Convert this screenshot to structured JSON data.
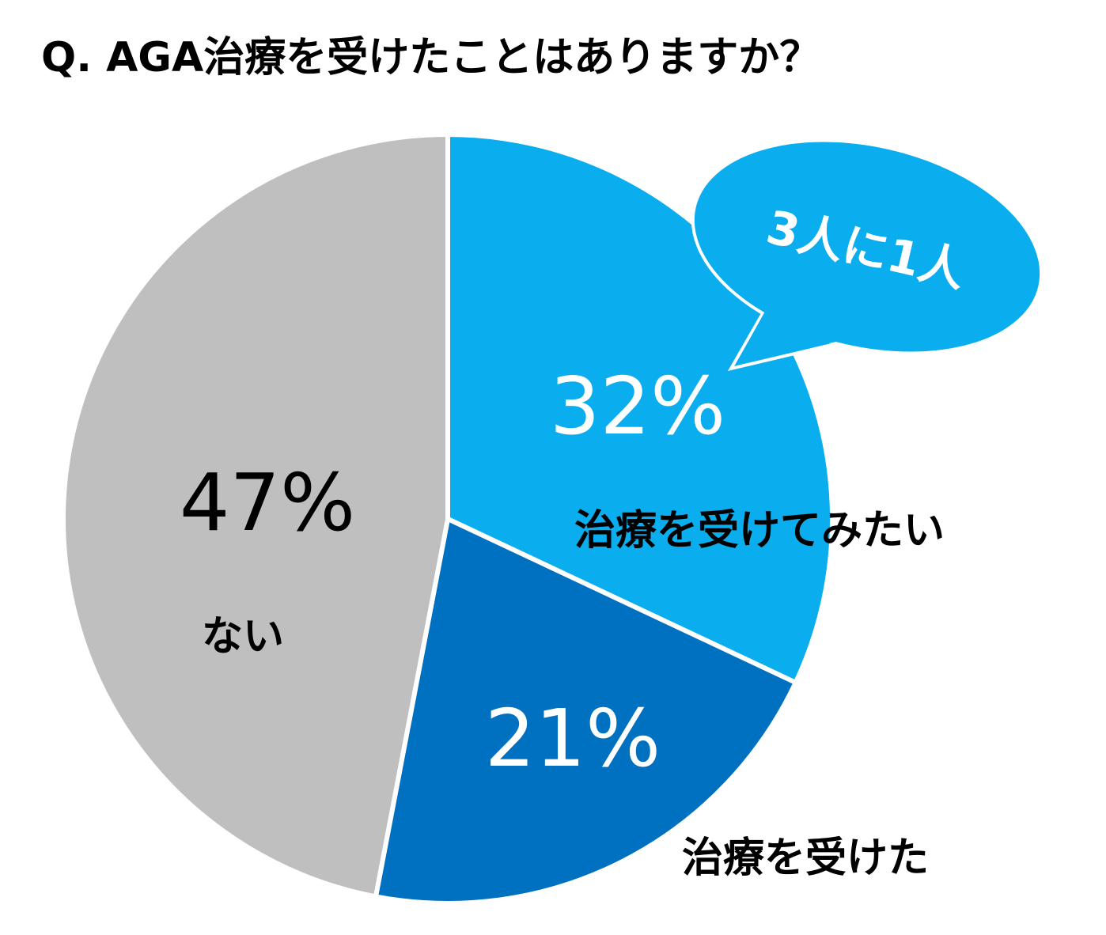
{
  "chart_data": {
    "type": "pie",
    "title": "Q. AGA治療を受けたことはありますか？",
    "slices": [
      {
        "label": "治療を受けてみたい",
        "value": 32,
        "value_label": "32%",
        "color": "#0AAEEF"
      },
      {
        "label": "治療を受けた",
        "value": 21,
        "value_label": "21%",
        "color": "#0070C0"
      },
      {
        "label": "ない",
        "value": 47,
        "value_label": "47%",
        "color": "#BFBFBF"
      }
    ],
    "start": "12 o'clock",
    "direction": "clockwise",
    "annotation": {
      "text": "3人に1人",
      "color": "#0AAEEF",
      "text_color": "#ffffff",
      "target": "治療を受けてみたい"
    },
    "legend": "none"
  }
}
